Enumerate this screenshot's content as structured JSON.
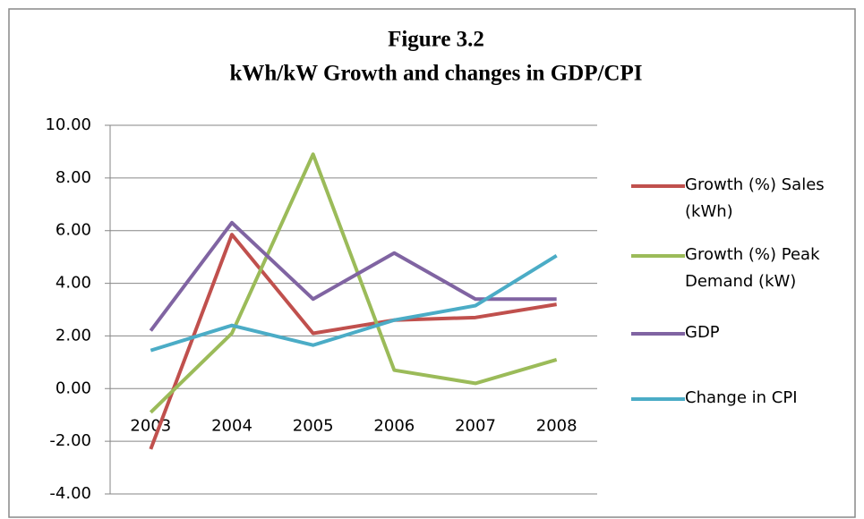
{
  "chart_data": {
    "type": "line",
    "title": "Figure 3.2",
    "subtitle": "kWh/kW Growth and changes in GDP/CPI",
    "categories": [
      "2003",
      "2004",
      "2005",
      "2006",
      "2007",
      "2008"
    ],
    "series": [
      {
        "name": "Growth (%) Sales (kWh)",
        "color": "#c0504d",
        "values": [
          -2.3,
          5.85,
          2.1,
          2.6,
          2.7,
          3.2
        ]
      },
      {
        "name": "Growth (%) Peak Demand (kW)",
        "color": "#9bbb59",
        "values": [
          -0.9,
          2.1,
          8.9,
          0.7,
          0.2,
          1.1
        ]
      },
      {
        "name": "GDP",
        "color": "#8064a2",
        "values": [
          2.2,
          6.3,
          3.4,
          5.15,
          3.4,
          3.4
        ]
      },
      {
        "name": "Change in CPI",
        "color": "#4bacc6",
        "values": [
          1.45,
          2.4,
          1.65,
          2.6,
          3.15,
          5.05
        ]
      }
    ],
    "ylim": [
      -4,
      10
    ],
    "yticks": [
      {
        "value": -4,
        "label": "-4.00"
      },
      {
        "value": -2,
        "label": "-2.00"
      },
      {
        "value": 0,
        "label": "0.00"
      },
      {
        "value": 2,
        "label": "2.00"
      },
      {
        "value": 4,
        "label": "4.00"
      },
      {
        "value": 6,
        "label": "6.00"
      },
      {
        "value": 8,
        "label": "8.00"
      },
      {
        "value": 10,
        "label": "10.00"
      }
    ],
    "grid": true,
    "legend": "right"
  }
}
